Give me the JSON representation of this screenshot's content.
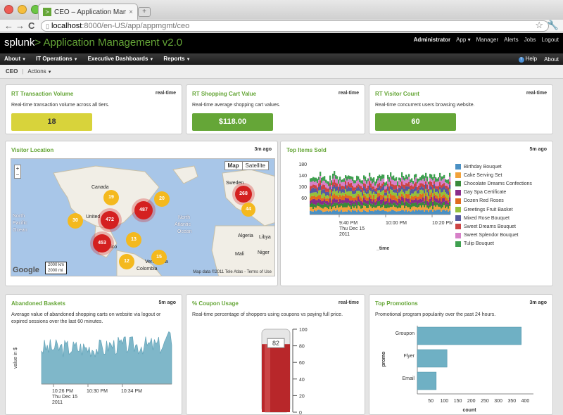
{
  "browser": {
    "tab_title": "CEO – Application Manageme...",
    "new_tab_glyph": "+",
    "url_host": "localhost",
    "url_path": ":8000/en-US/app/appmgmt/ceo",
    "back_glyph": "←",
    "forward_glyph": "→",
    "reload_glyph": "C",
    "star_glyph": "☆",
    "wrench_glyph": "🔧"
  },
  "header": {
    "logo_text": "splunk",
    "logo_separator": ">",
    "app_title": "Application Management v2.0",
    "user": "Administrator",
    "links": [
      "App ▾",
      "Manager",
      "Alerts",
      "Jobs",
      "Logout"
    ]
  },
  "menu": {
    "items": [
      "About",
      "IT Operations",
      "Executive Dashboards",
      "Reports"
    ],
    "help": "Help",
    "about": "About"
  },
  "breadcrumb": {
    "page": "CEO",
    "actions": "Actions"
  },
  "panels": {
    "rt_tx": {
      "title": "RT Transaction Volume",
      "meta": "real-time",
      "desc": "Real-time transaction volume across all tiers.",
      "value": "18",
      "color": "#d8d33b"
    },
    "rt_cart": {
      "title": "RT Shopping Cart Value",
      "meta": "real-time",
      "desc": "Real-time average shopping cart values.",
      "value": "$118.00",
      "color": "#65a637"
    },
    "rt_visitor": {
      "title": "RT Visitor Count",
      "meta": "real-time",
      "desc": "Real-time concurrent users browsing website.",
      "value": "60",
      "color": "#65a637"
    },
    "visitor_location": {
      "title": "Visitor Location",
      "meta": "3m ago"
    },
    "top_items": {
      "title": "Top Items Sold",
      "meta": "5m ago"
    },
    "abandoned": {
      "title": "Abandoned Baskets",
      "meta": "5m ago",
      "desc": "Average value of abandoned shopping carts on website via logout or expired sessions over the last 60 minutes."
    },
    "coupon": {
      "title": "% Coupon Usage",
      "meta": "real-time",
      "desc": "Real-time percentage of shoppers using coupons vs paying full price."
    },
    "promotions": {
      "title": "Top Promotions",
      "meta": "3m ago",
      "desc": "Promotional program popularity over the past 24 hours."
    }
  },
  "map": {
    "type_buttons": [
      "Map",
      "Satellite"
    ],
    "zoom_in": "+",
    "zoom_out": "−",
    "labels": {
      "ocean_north": "North",
      "ocean_atlantic": "Atlantic",
      "ocean_ocean": "Ocean",
      "pacific_1": "North",
      "pacific_2": "Pacific",
      "pacific_3": "Ocean",
      "canada": "Canada",
      "united": "United",
      "mexico": "Mexico",
      "venezuela": "Venezuela",
      "colombia": "Colombia",
      "sweden": "Sweden",
      "algeria": "Algeria",
      "libya": "Libya",
      "mali": "Mali",
      "niger": "Niger",
      "germany": "Germany"
    },
    "clusters": [
      "19",
      "20",
      "30",
      "472",
      "487",
      "268",
      "44",
      "453",
      "13",
      "12",
      "15"
    ],
    "google": "Google",
    "scale_km": "2000 km",
    "scale_mi": "2000 mi",
    "footer": "Map data ©2011 Tele Atlas - Terms of Use"
  },
  "chart_data": [
    {
      "type": "area",
      "title": "Top Items Sold",
      "xlabel": "_time",
      "ylabel": "",
      "ylim": [
        0,
        180
      ],
      "yticks": [
        "180",
        "140",
        "100",
        "60"
      ],
      "xticks": [
        "9:40 PM\nThu Dec 15\n2011",
        "10:00 PM",
        "10:20 PM"
      ],
      "series": [
        {
          "name": "Birthday Bouquet",
          "color": "#4a90c4"
        },
        {
          "name": "Cake Serving Set",
          "color": "#f2a23a"
        },
        {
          "name": "Chocolate Dreams Confections",
          "color": "#3a8a3a"
        },
        {
          "name": "Day Spa Certificate",
          "color": "#8a2b8a"
        },
        {
          "name": "Dozen Red Roses",
          "color": "#e06b1d"
        },
        {
          "name": "Greetings Fruit Basket",
          "color": "#95c13b"
        },
        {
          "name": "Mixed Rose Bouquet",
          "color": "#555aa0"
        },
        {
          "name": "Sweet Dreams Bouquet",
          "color": "#cc4444"
        },
        {
          "name": "Sweet Splendor Bouquet",
          "color": "#d680c8"
        },
        {
          "name": "Tulip Bouquet",
          "color": "#3fa050"
        }
      ]
    },
    {
      "type": "area",
      "title": "Abandoned Baskets",
      "ylabel": "value in $",
      "xticks": [
        "10:26 PM\nThu Dec 15\n2011",
        "10:30 PM",
        "10:34 PM"
      ],
      "color": "#7fb7c9"
    },
    {
      "type": "gauge",
      "title": "% Coupon Usage",
      "value": 82,
      "range": [
        0,
        100
      ],
      "ticks": [
        "100",
        "80",
        "60",
        "40",
        "20",
        "0"
      ]
    },
    {
      "type": "bar",
      "title": "Top Promotions",
      "categories": [
        "Groupon",
        "Flyer",
        "Email"
      ],
      "values": [
        385,
        110,
        70
      ],
      "xlabel": "count",
      "ylabel": "promo",
      "xticks": [
        "50",
        "100",
        "150",
        "200",
        "250",
        "300",
        "350",
        "400"
      ],
      "xlim": [
        0,
        430
      ],
      "color": "#6fb0c4"
    }
  ]
}
